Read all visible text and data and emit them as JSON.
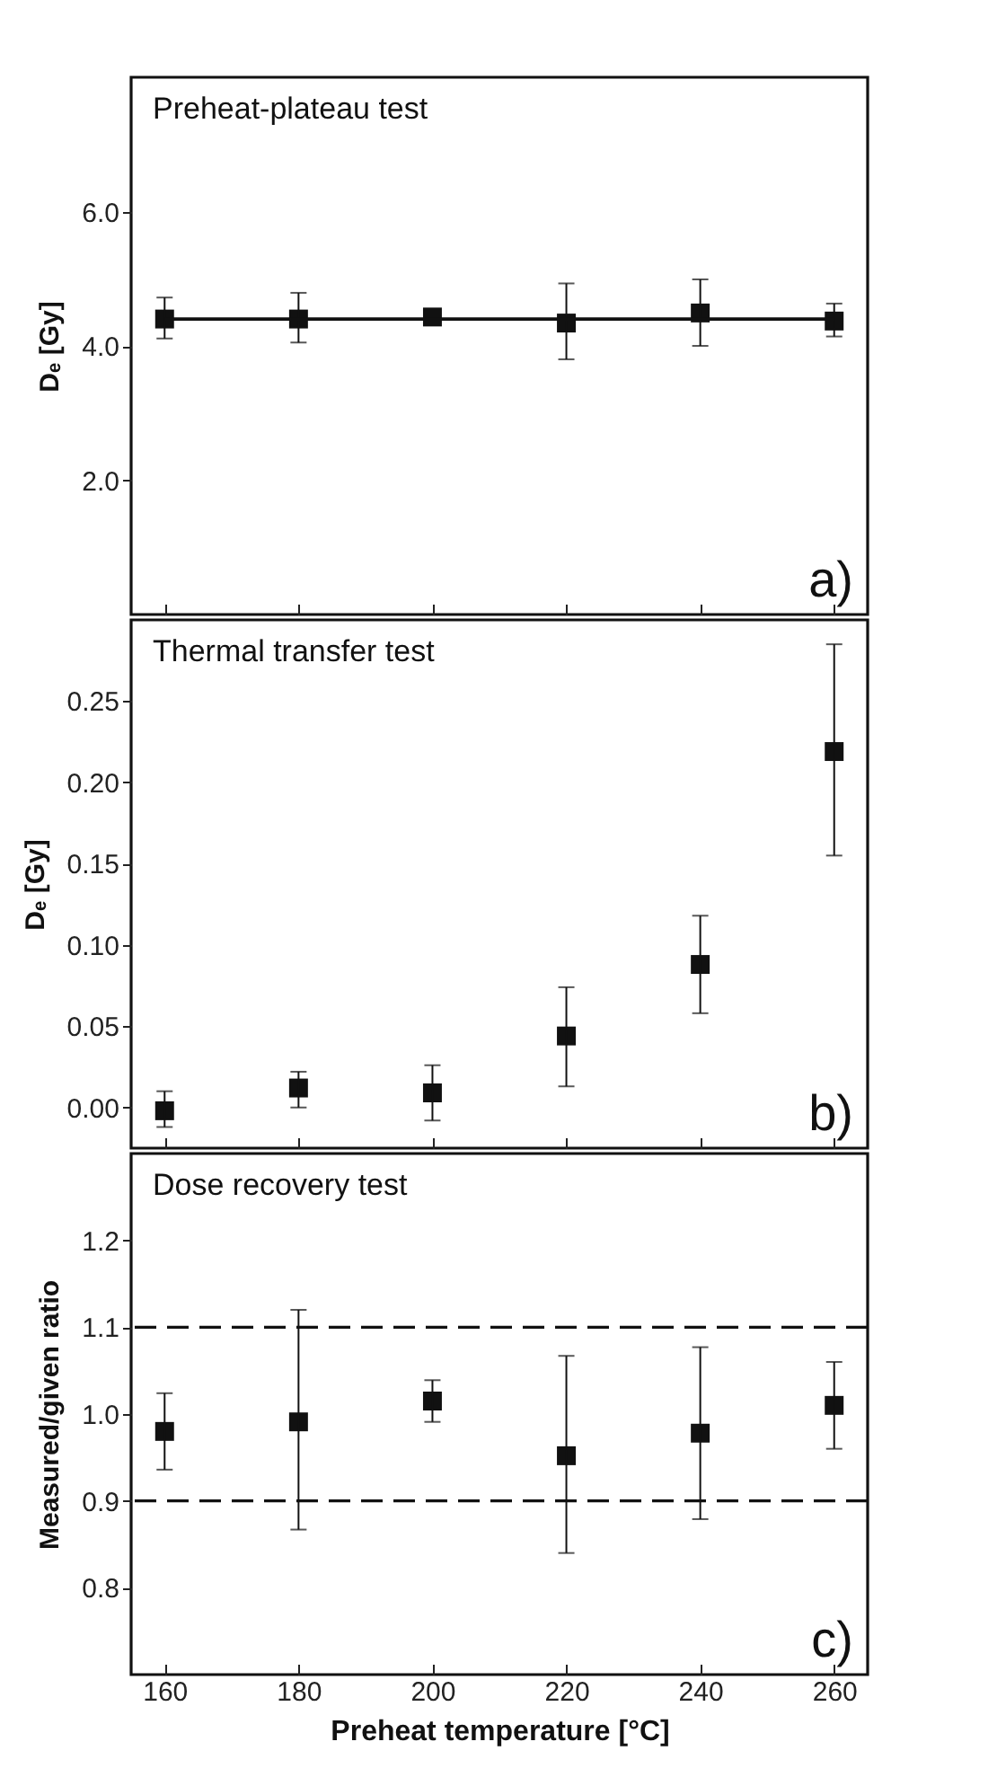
{
  "chart_data": [
    {
      "type": "scatter",
      "title": "Preheat-plateau test",
      "annotations": [
        "a)"
      ],
      "ylabel": "Dₑ [Gy]",
      "xlim": [
        155,
        265
      ],
      "xticks": [
        160,
        180,
        200,
        220,
        240,
        260
      ],
      "ylim": [
        0,
        8
      ],
      "yticks": [
        {
          "value": 2,
          "label": "2.0"
        },
        {
          "value": 4,
          "label": "4.0"
        },
        {
          "value": 6,
          "label": "6.0"
        }
      ],
      "tick_labels": "y",
      "grid": false,
      "x": [
        160,
        180,
        200,
        220,
        240,
        260
      ],
      "series": [
        {
          "marker": "square",
          "color": "#111111",
          "values": [
            4.4,
            4.4,
            4.43,
            4.34,
            4.49,
            4.37
          ],
          "errors": [
            [
              4.11,
              4.72
            ],
            [
              4.05,
              4.79
            ],
            null,
            [
              3.8,
              4.93
            ],
            [
              4.0,
              4.99
            ],
            [
              4.14,
              4.63
            ]
          ]
        },
        {
          "type": "line",
          "marker": "none",
          "color": "#111111",
          "x": [
            160,
            260
          ],
          "values": [
            4.4,
            4.4
          ]
        }
      ]
    },
    {
      "type": "scatter",
      "title": "Thermal transfer test",
      "annotations": [
        "b)"
      ],
      "ylabel": "Dₑ [Gy]",
      "xlim": [
        155,
        265
      ],
      "xticks": [
        160,
        180,
        200,
        220,
        240,
        260
      ],
      "ylim": [
        -0.025,
        0.3
      ],
      "yticks": [
        {
          "value": 0,
          "label": "0.00"
        },
        0.05,
        {
          "value": 0.1,
          "label": "0.10"
        },
        0.15,
        {
          "value": 0.2,
          "label": "0.20"
        },
        0.25
      ],
      "tick_labels": "y",
      "marker": "square",
      "grid": false,
      "x": [
        160,
        180,
        200,
        220,
        240,
        260
      ],
      "series": [
        {
          "color": "#111111",
          "values": [
            -0.002,
            0.012,
            0.009,
            0.044,
            0.088,
            0.219
          ],
          "errors": [
            [
              -0.012,
              0.01
            ],
            [
              0.0,
              0.022
            ],
            [
              -0.008,
              0.026
            ],
            [
              0.013,
              0.074
            ],
            [
              0.058,
              0.118
            ],
            [
              0.155,
              0.285
            ]
          ]
        }
      ]
    },
    {
      "type": "scatter",
      "title": "Dose recovery test",
      "annotations": [
        "c)"
      ],
      "xlabel": "Preheat temperature [°C]",
      "ylabel": "Measured/given ratio",
      "xlim": [
        155,
        265
      ],
      "xticks": [
        160,
        180,
        200,
        220,
        240,
        260
      ],
      "ylim": [
        0.7,
        1.3
      ],
      "yticks": [
        0.8,
        0.9,
        {
          "value": 1.0,
          "label": "1.0"
        },
        1.1,
        1.2
      ],
      "marker": "square",
      "grid": false,
      "x": [
        160,
        180,
        200,
        220,
        240,
        260
      ],
      "ref_lines": [
        {
          "axis": "y",
          "value": 1.1,
          "color": "#111111",
          "line_style": "dashed"
        },
        {
          "axis": "y",
          "value": 0.9,
          "color": "#111111",
          "line_style": "dashed"
        }
      ],
      "series": [
        {
          "color": "#111111",
          "values": [
            0.98,
            0.991,
            1.015,
            0.952,
            0.978,
            1.01
          ],
          "errors": [
            [
              0.936,
              1.024
            ],
            [
              0.867,
              1.12
            ],
            [
              0.991,
              1.039
            ],
            [
              0.84,
              1.067
            ],
            [
              0.879,
              1.077
            ],
            [
              0.96,
              1.06
            ]
          ]
        }
      ]
    }
  ]
}
